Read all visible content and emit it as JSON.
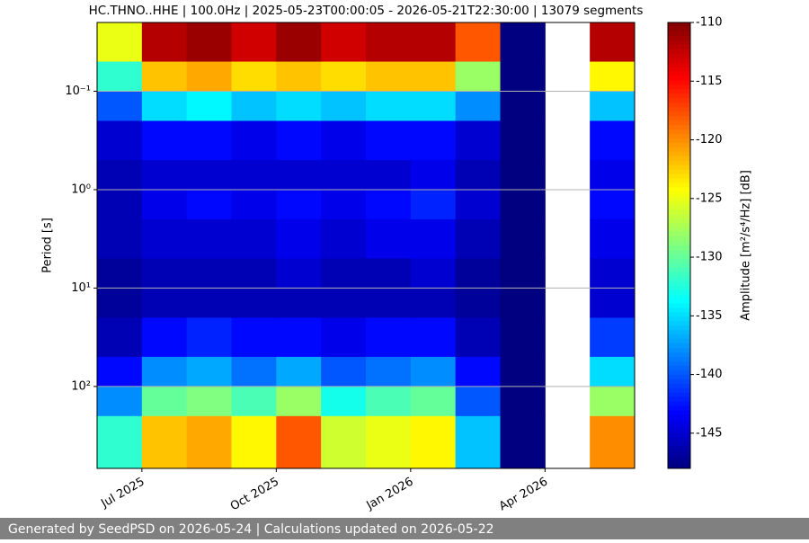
{
  "chart_data": {
    "type": "heatmap",
    "title": "HC.THNO..HHE | 100.0Hz | 2025-05-23T00:00:05 - 2026-05-21T22:30:00 | 13079 segments",
    "y_label": "Period [s]",
    "colorbar_label": "Amplitude [m²/s⁴/Hz] [dB]",
    "footer": "Generated by SeedPSD on 2026-05-24 | Calculations updated on 2026-05-22",
    "colormap": "jet",
    "y_log": true,
    "y_inverted": true,
    "grid": true,
    "x": [
      "2025-06",
      "2025-07",
      "2025-08",
      "2025-09",
      "2025-10",
      "2025-11",
      "2025-12",
      "2026-01",
      "2026-02",
      "2026-03",
      "2026-04",
      "2026-05"
    ],
    "xticks": [
      {
        "value": "2025-07",
        "label": "Jul 2025"
      },
      {
        "value": "2025-10",
        "label": "Oct 2025"
      },
      {
        "value": "2026-01",
        "label": "Jan 2026"
      },
      {
        "value": "2026-04",
        "label": "Apr 2026"
      }
    ],
    "y_bins": [
      0.02,
      0.05,
      0.1,
      0.2,
      0.5,
      1,
      2,
      5,
      10,
      20,
      50,
      100,
      200,
      680
    ],
    "ylim": [
      0.02,
      680
    ],
    "yticks": [
      {
        "value": 0.1,
        "label": "10⁻¹"
      },
      {
        "value": 1,
        "label": "10⁰"
      },
      {
        "value": 10,
        "label": "10¹"
      },
      {
        "value": 100,
        "label": "10²"
      }
    ],
    "z": [
      [
        -125,
        -132,
        -140,
        -145,
        -146,
        -146,
        -146,
        -147,
        -147,
        -146,
        -143,
        -138,
        -132
      ],
      [
        -112,
        -122,
        -135,
        -143,
        -145,
        -144,
        -145,
        -146,
        -146,
        -143,
        -138,
        -130,
        -122
      ],
      [
        -111,
        -121,
        -134,
        -143,
        -145,
        -143,
        -145,
        -146,
        -146,
        -142,
        -137,
        -129,
        -121
      ],
      [
        -113,
        -123,
        -136,
        -144,
        -145,
        -144,
        -145,
        -146,
        -146,
        -143,
        -139,
        -131,
        -124
      ],
      [
        -111,
        -122,
        -135,
        -143,
        -145,
        -143,
        -144,
        -145,
        -146,
        -143,
        -137,
        -128,
        -118
      ],
      [
        -113,
        -123,
        -136,
        -144,
        -145,
        -144,
        -145,
        -146,
        -146,
        -144,
        -140,
        -133,
        -126
      ],
      [
        -112,
        -122,
        -135,
        -143,
        -145,
        -143,
        -144,
        -146,
        -146,
        -143,
        -139,
        -131,
        -125
      ],
      [
        -112,
        -122,
        -135,
        -143,
        -144,
        -142,
        -144,
        -145,
        -146,
        -143,
        -138,
        -130,
        -124
      ],
      [
        -118,
        -128,
        -138,
        -145,
        -146,
        -145,
        -146,
        -147,
        -147,
        -146,
        -143,
        -140,
        -136
      ],
      [
        -148,
        -148,
        -148,
        -148,
        -148,
        -148,
        -148,
        -148,
        -148,
        -148,
        -148,
        -148,
        -148
      ],
      [
        null,
        null,
        null,
        null,
        null,
        null,
        null,
        null,
        null,
        null,
        null,
        null,
        null
      ],
      [
        -112,
        -124,
        -136,
        -143,
        -144,
        -143,
        -144,
        -145,
        -145,
        -141,
        -135,
        -128,
        -120
      ]
    ],
    "clim": [
      -148,
      -110
    ],
    "cticks": [
      -110,
      -115,
      -120,
      -125,
      -130,
      -135,
      -140,
      -145
    ]
  }
}
